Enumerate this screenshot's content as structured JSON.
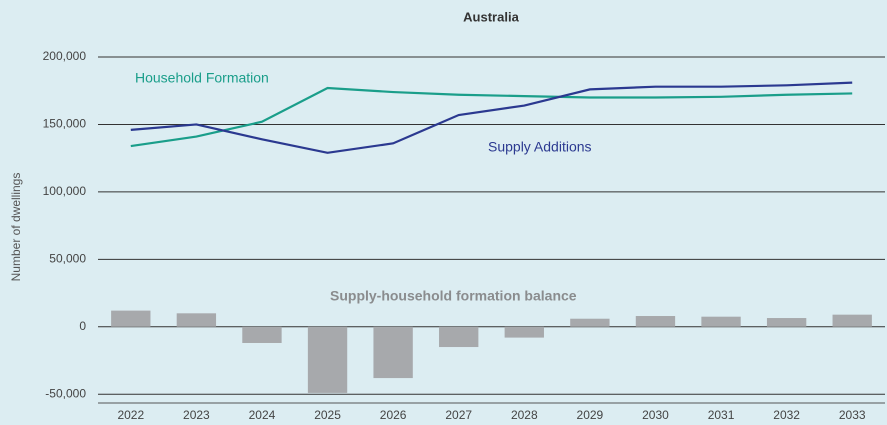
{
  "chart_data": {
    "type": "combo",
    "title": "Australia",
    "y_label": "Number of dwellings",
    "categories": [
      "2022",
      "2023",
      "2024",
      "2025",
      "2026",
      "2027",
      "2028",
      "2029",
      "2030",
      "2031",
      "2032",
      "2033"
    ],
    "series": [
      {
        "name": "Household Formation",
        "type": "line",
        "color": "#1a9e8a",
        "values": [
          134000,
          141000,
          152000,
          177000,
          174000,
          172000,
          171000,
          170000,
          170000,
          170500,
          172000,
          173000
        ]
      },
      {
        "name": "Supply Additions",
        "type": "line",
        "color": "#2b3990",
        "values": [
          146000,
          150000,
          139000,
          129000,
          136000,
          157000,
          164000,
          176000,
          178000,
          178000,
          179000,
          181000
        ]
      },
      {
        "name": "Supply-household formation balance",
        "type": "bar",
        "color": "#a7a9ac",
        "values": [
          12000,
          10000,
          -12000,
          -49000,
          -38000,
          -15000,
          -8000,
          6000,
          8000,
          7500,
          6500,
          9000
        ]
      }
    ],
    "ylim": [
      -55000,
      200000
    ],
    "yticks": [
      {
        "value": -50000,
        "label": "-50,000"
      },
      0,
      {
        "value": 50000,
        "label": "50,000"
      },
      {
        "value": 100000,
        "label": "100,000"
      },
      {
        "value": 150000,
        "label": "150,000"
      },
      {
        "value": 200000,
        "label": "200,000"
      }
    ],
    "grid": true
  }
}
